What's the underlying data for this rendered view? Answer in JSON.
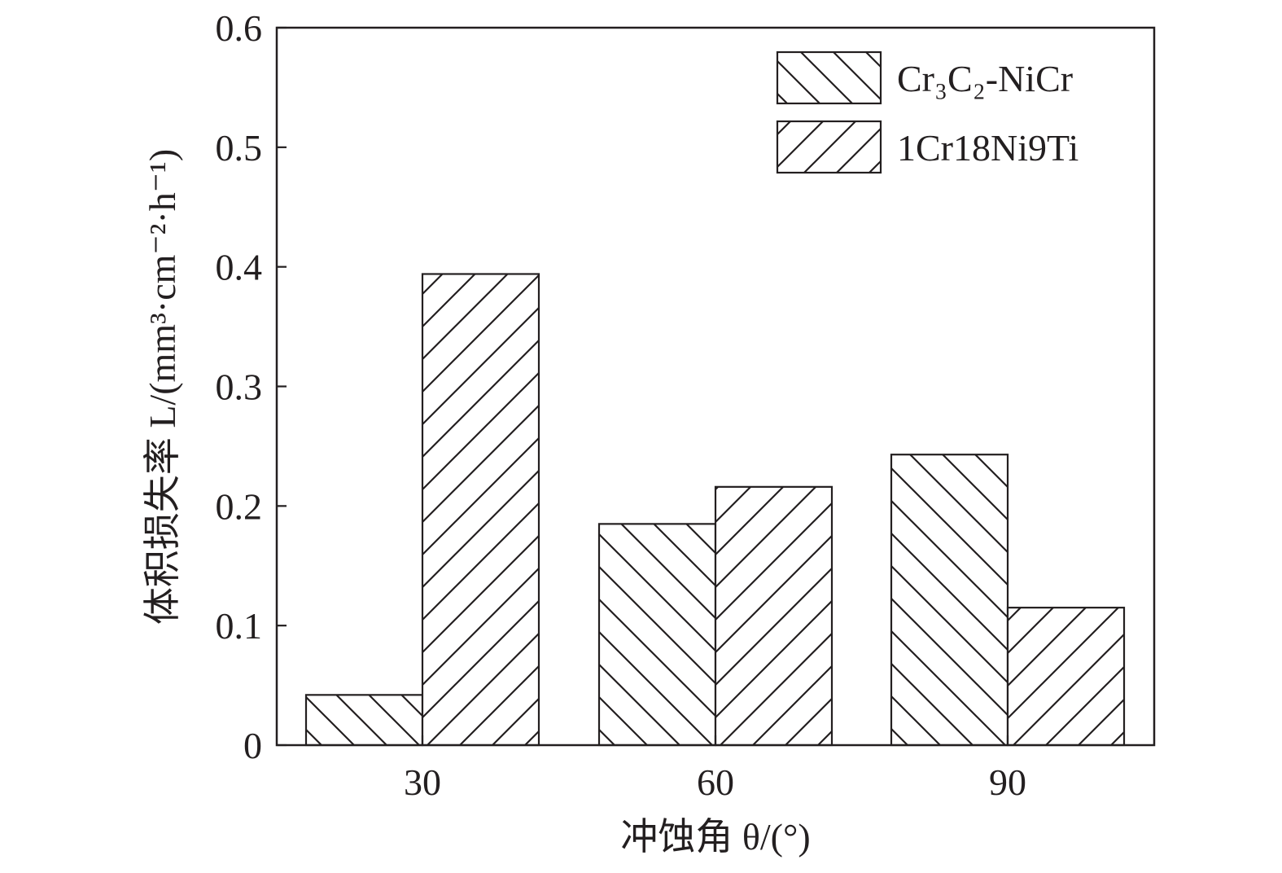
{
  "chart_data": {
    "type": "bar",
    "categories": [
      "30",
      "60",
      "90"
    ],
    "series": [
      {
        "name": "Cr₃C₂-NiCr",
        "values": [
          0.042,
          0.185,
          0.243
        ],
        "pattern": "backslash-hatch"
      },
      {
        "name": "1Cr18Ni9Ti",
        "values": [
          0.394,
          0.216,
          0.115
        ],
        "pattern": "slash-hatch"
      }
    ],
    "xlabel": "冲蚀角 θ/(°)",
    "ylabel": "体积损失率 L/(mm³·cm⁻²·h⁻¹)",
    "ylim": [
      0,
      0.6
    ],
    "yticks": [
      "0",
      "0.1",
      "0.2",
      "0.3",
      "0.4",
      "0.5",
      "0.6"
    ],
    "grid": false,
    "legend_position": "top-right",
    "colors": {
      "ink": "#231f20",
      "background": "#ffffff"
    }
  }
}
